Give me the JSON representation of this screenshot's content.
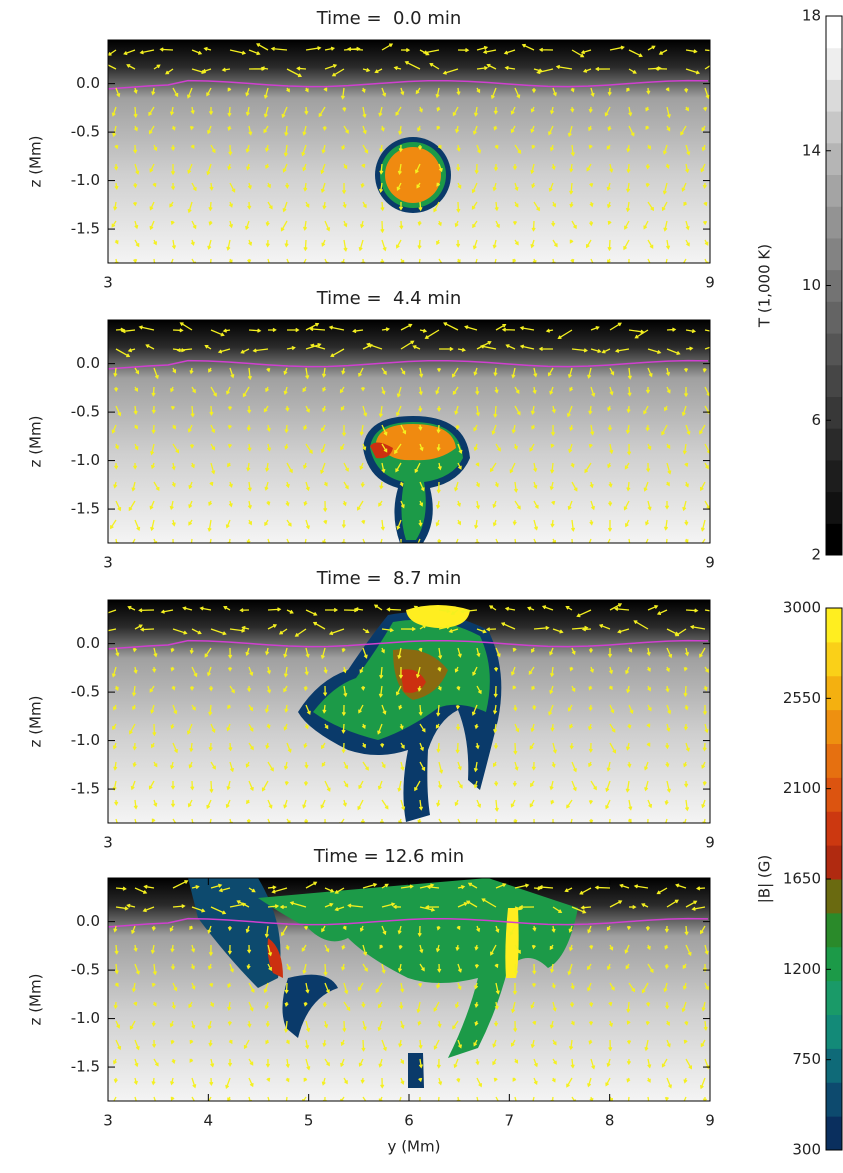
{
  "chart_data": [
    {
      "type": "heatmap",
      "title": "Time =  0.0 min",
      "ylabel": "z (Mm)",
      "xlim": [
        3,
        9
      ],
      "xticks": [
        3,
        9
      ],
      "ylim": [
        -1.85,
        0.45
      ],
      "yticks": [
        {
          "value": 0,
          "label": "0.0"
        },
        -0.5,
        {
          "value": -1,
          "label": "-1.0"
        },
        -1.5
      ]
    },
    {
      "type": "heatmap",
      "title": "Time =  4.4 min",
      "ylabel": "z (Mm)",
      "xlim": [
        3,
        9
      ],
      "xticks": [
        3,
        9
      ],
      "ylim": [
        -1.85,
        0.45
      ],
      "yticks": [
        {
          "value": 0,
          "label": "0.0"
        },
        -0.5,
        {
          "value": -1,
          "label": "-1.0"
        },
        -1.5
      ]
    },
    {
      "type": "heatmap",
      "title": "Time =  8.7 min",
      "ylabel": "z (Mm)",
      "xlim": [
        3,
        9
      ],
      "xticks": [
        3,
        9
      ],
      "ylim": [
        -1.85,
        0.45
      ],
      "yticks": [
        {
          "value": 0,
          "label": "0.0"
        },
        -0.5,
        {
          "value": -1,
          "label": "-1.0"
        },
        -1.5
      ]
    },
    {
      "type": "heatmap",
      "title": "Time = 12.6 min",
      "ylabel": "z (Mm)",
      "xlabel": "y (Mm)",
      "xlim": [
        3,
        9
      ],
      "xticks": [
        3,
        4,
        5,
        6,
        7,
        8,
        9
      ],
      "ylim": [
        -1.85,
        0.45
      ],
      "yticks": [
        {
          "value": 0,
          "label": "0.0"
        },
        -0.5,
        {
          "value": -1,
          "label": "-1.0"
        },
        -1.5
      ]
    },
    {
      "type": "colorbar",
      "label": "T (1,000 K)",
      "lim": [
        2,
        18
      ],
      "ticks": [
        2,
        6,
        10,
        14,
        18
      ],
      "colors": [
        "#000000",
        "#111111",
        "#1d1d1d",
        "#2a2a2a",
        "#383838",
        "#464646",
        "#555555",
        "#646464",
        "#737373",
        "#838383",
        "#939393",
        "#a4a4a4",
        "#b5b5b5",
        "#c7c7c7",
        "#dadada",
        "#eeeeee",
        "#ffffff"
      ]
    },
    {
      "type": "colorbar",
      "label": "|B| (G)",
      "lim": [
        300,
        3000
      ],
      "ticks": [
        300,
        750,
        1200,
        1650,
        2100,
        2550,
        3000
      ],
      "colors": [
        "#0a2f5e",
        "#0d4a6e",
        "#0f6a78",
        "#138a78",
        "#1a9a68",
        "#1c9a48",
        "#2a8a2a",
        "#6a6a10",
        "#b02a10",
        "#cc3810",
        "#dc5410",
        "#e67010",
        "#ee9010",
        "#f4b010",
        "#fad018",
        "#ffee20"
      ]
    }
  ]
}
